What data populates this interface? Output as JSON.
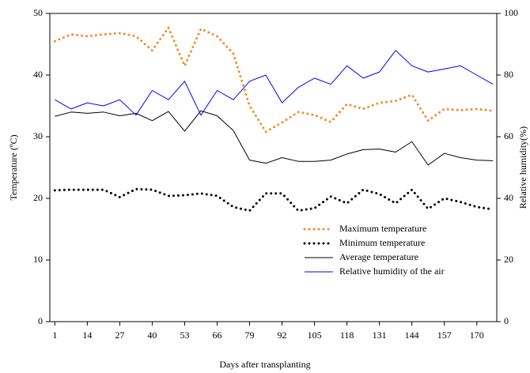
{
  "chart_data": {
    "type": "line",
    "x_label": "Days after transplanting",
    "y_label": "Temperature (ºC)",
    "y2_label": "Relative humidity(%)",
    "x": [
      1,
      7.5,
      14,
      20.5,
      27,
      33.5,
      40,
      46.5,
      53,
      59.5,
      66,
      72.5,
      79,
      85.5,
      92,
      98.5,
      105,
      111.5,
      118,
      124.5,
      131,
      137.5,
      144,
      150.5,
      157,
      163.5,
      170,
      176.5
    ],
    "xlim": [
      -1,
      178
    ],
    "xticks": [
      1,
      14,
      27,
      40,
      53,
      66,
      79,
      92,
      105,
      118,
      131,
      144,
      157,
      170
    ],
    "ylim": [
      0,
      50
    ],
    "yticks": [
      0,
      10,
      20,
      30,
      40,
      50
    ],
    "y2lim": [
      0,
      100
    ],
    "y2ticks": [
      0,
      20,
      40,
      60,
      80,
      100
    ],
    "legend": "lower right",
    "series": [
      {
        "name": "Maximum temperature",
        "color": "#f28c28",
        "style": "dotted",
        "values": [
          45.5,
          46.6,
          46.3,
          46.6,
          46.8,
          46.3,
          44.0,
          47.7,
          41.5,
          47.5,
          46.3,
          43.5,
          35.0,
          30.8,
          32.3,
          34.0,
          33.5,
          32.4,
          35.3,
          34.5,
          35.5,
          35.8,
          36.8,
          32.6,
          34.5,
          34.3,
          34.5,
          34.2
        ]
      },
      {
        "name": "Minimum temperature",
        "color": "#000000",
        "style": "dotted",
        "values": [
          21.3,
          21.4,
          21.4,
          21.4,
          20.2,
          21.5,
          21.4,
          20.4,
          20.5,
          20.8,
          20.4,
          18.6,
          18.0,
          20.8,
          20.8,
          18.0,
          18.4,
          20.3,
          19.2,
          21.4,
          20.7,
          19.2,
          21.4,
          18.3,
          20.0,
          19.4,
          18.6,
          18.2
        ]
      },
      {
        "name": "Average temperature",
        "color": "#000000",
        "style": "solid",
        "values": [
          33.3,
          34.0,
          33.8,
          34.0,
          33.4,
          33.8,
          32.6,
          34.1,
          30.9,
          34.2,
          33.4,
          31.0,
          26.2,
          25.7,
          26.6,
          26.0,
          26.0,
          26.2,
          27.2,
          27.9,
          28.0,
          27.5,
          29.2,
          25.4,
          27.3,
          26.6,
          26.2,
          26.1
        ]
      },
      {
        "name": "Relative humidity of the air",
        "color": "#0000ff",
        "style": "solid",
        "axis": "y2",
        "values": [
          72,
          69,
          71,
          70,
          72,
          67,
          75,
          72,
          78,
          67,
          75,
          72,
          78,
          80,
          71,
          76,
          79,
          77,
          83,
          79,
          81,
          88,
          83,
          81,
          82,
          83,
          80,
          77
        ]
      }
    ]
  }
}
